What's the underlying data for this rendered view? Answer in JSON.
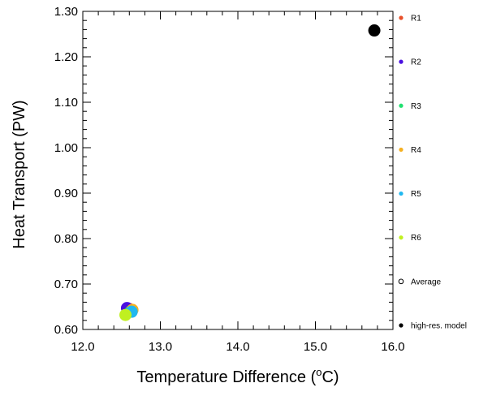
{
  "chart_data": {
    "type": "scatter",
    "title": "",
    "xlabel": "Temperature Difference (",
    "xlabel_sup": "o",
    "xlabel_tail": "C)",
    "ylabel": "Heat Transport (PW)",
    "xlim": [
      12.0,
      16.0
    ],
    "ylim": [
      0.6,
      1.3
    ],
    "xticks": [
      "12.0",
      "13.0",
      "14.0",
      "15.0",
      "16.0"
    ],
    "yticks": [
      "0.60",
      "0.70",
      "0.80",
      "0.90",
      "1.00",
      "1.10",
      "1.20",
      "1.30"
    ],
    "grid": false,
    "legend_position": "right-outside",
    "series": [
      {
        "name": "R1",
        "color": "#e8502a",
        "filled": true,
        "x": 12.6,
        "y": 0.645
      },
      {
        "name": "R2",
        "color": "#4a10e0",
        "filled": true,
        "x": 12.57,
        "y": 0.647
      },
      {
        "name": "R3",
        "color": "#20e070",
        "filled": true,
        "x": 12.62,
        "y": 0.64
      },
      {
        "name": "R4",
        "color": "#f5b020",
        "filled": true,
        "x": 12.64,
        "y": 0.643
      },
      {
        "name": "R5",
        "color": "#20b8f0",
        "filled": true,
        "x": 12.63,
        "y": 0.639
      },
      {
        "name": "R6",
        "color": "#c0f020",
        "filled": true,
        "x": 12.55,
        "y": 0.632
      },
      {
        "name": "Average",
        "color": "#000000",
        "filled": false,
        "x": null,
        "y": null
      },
      {
        "name": "high-res. model",
        "color": "#000000",
        "filled": true,
        "x": 15.76,
        "y": 1.258
      }
    ]
  }
}
